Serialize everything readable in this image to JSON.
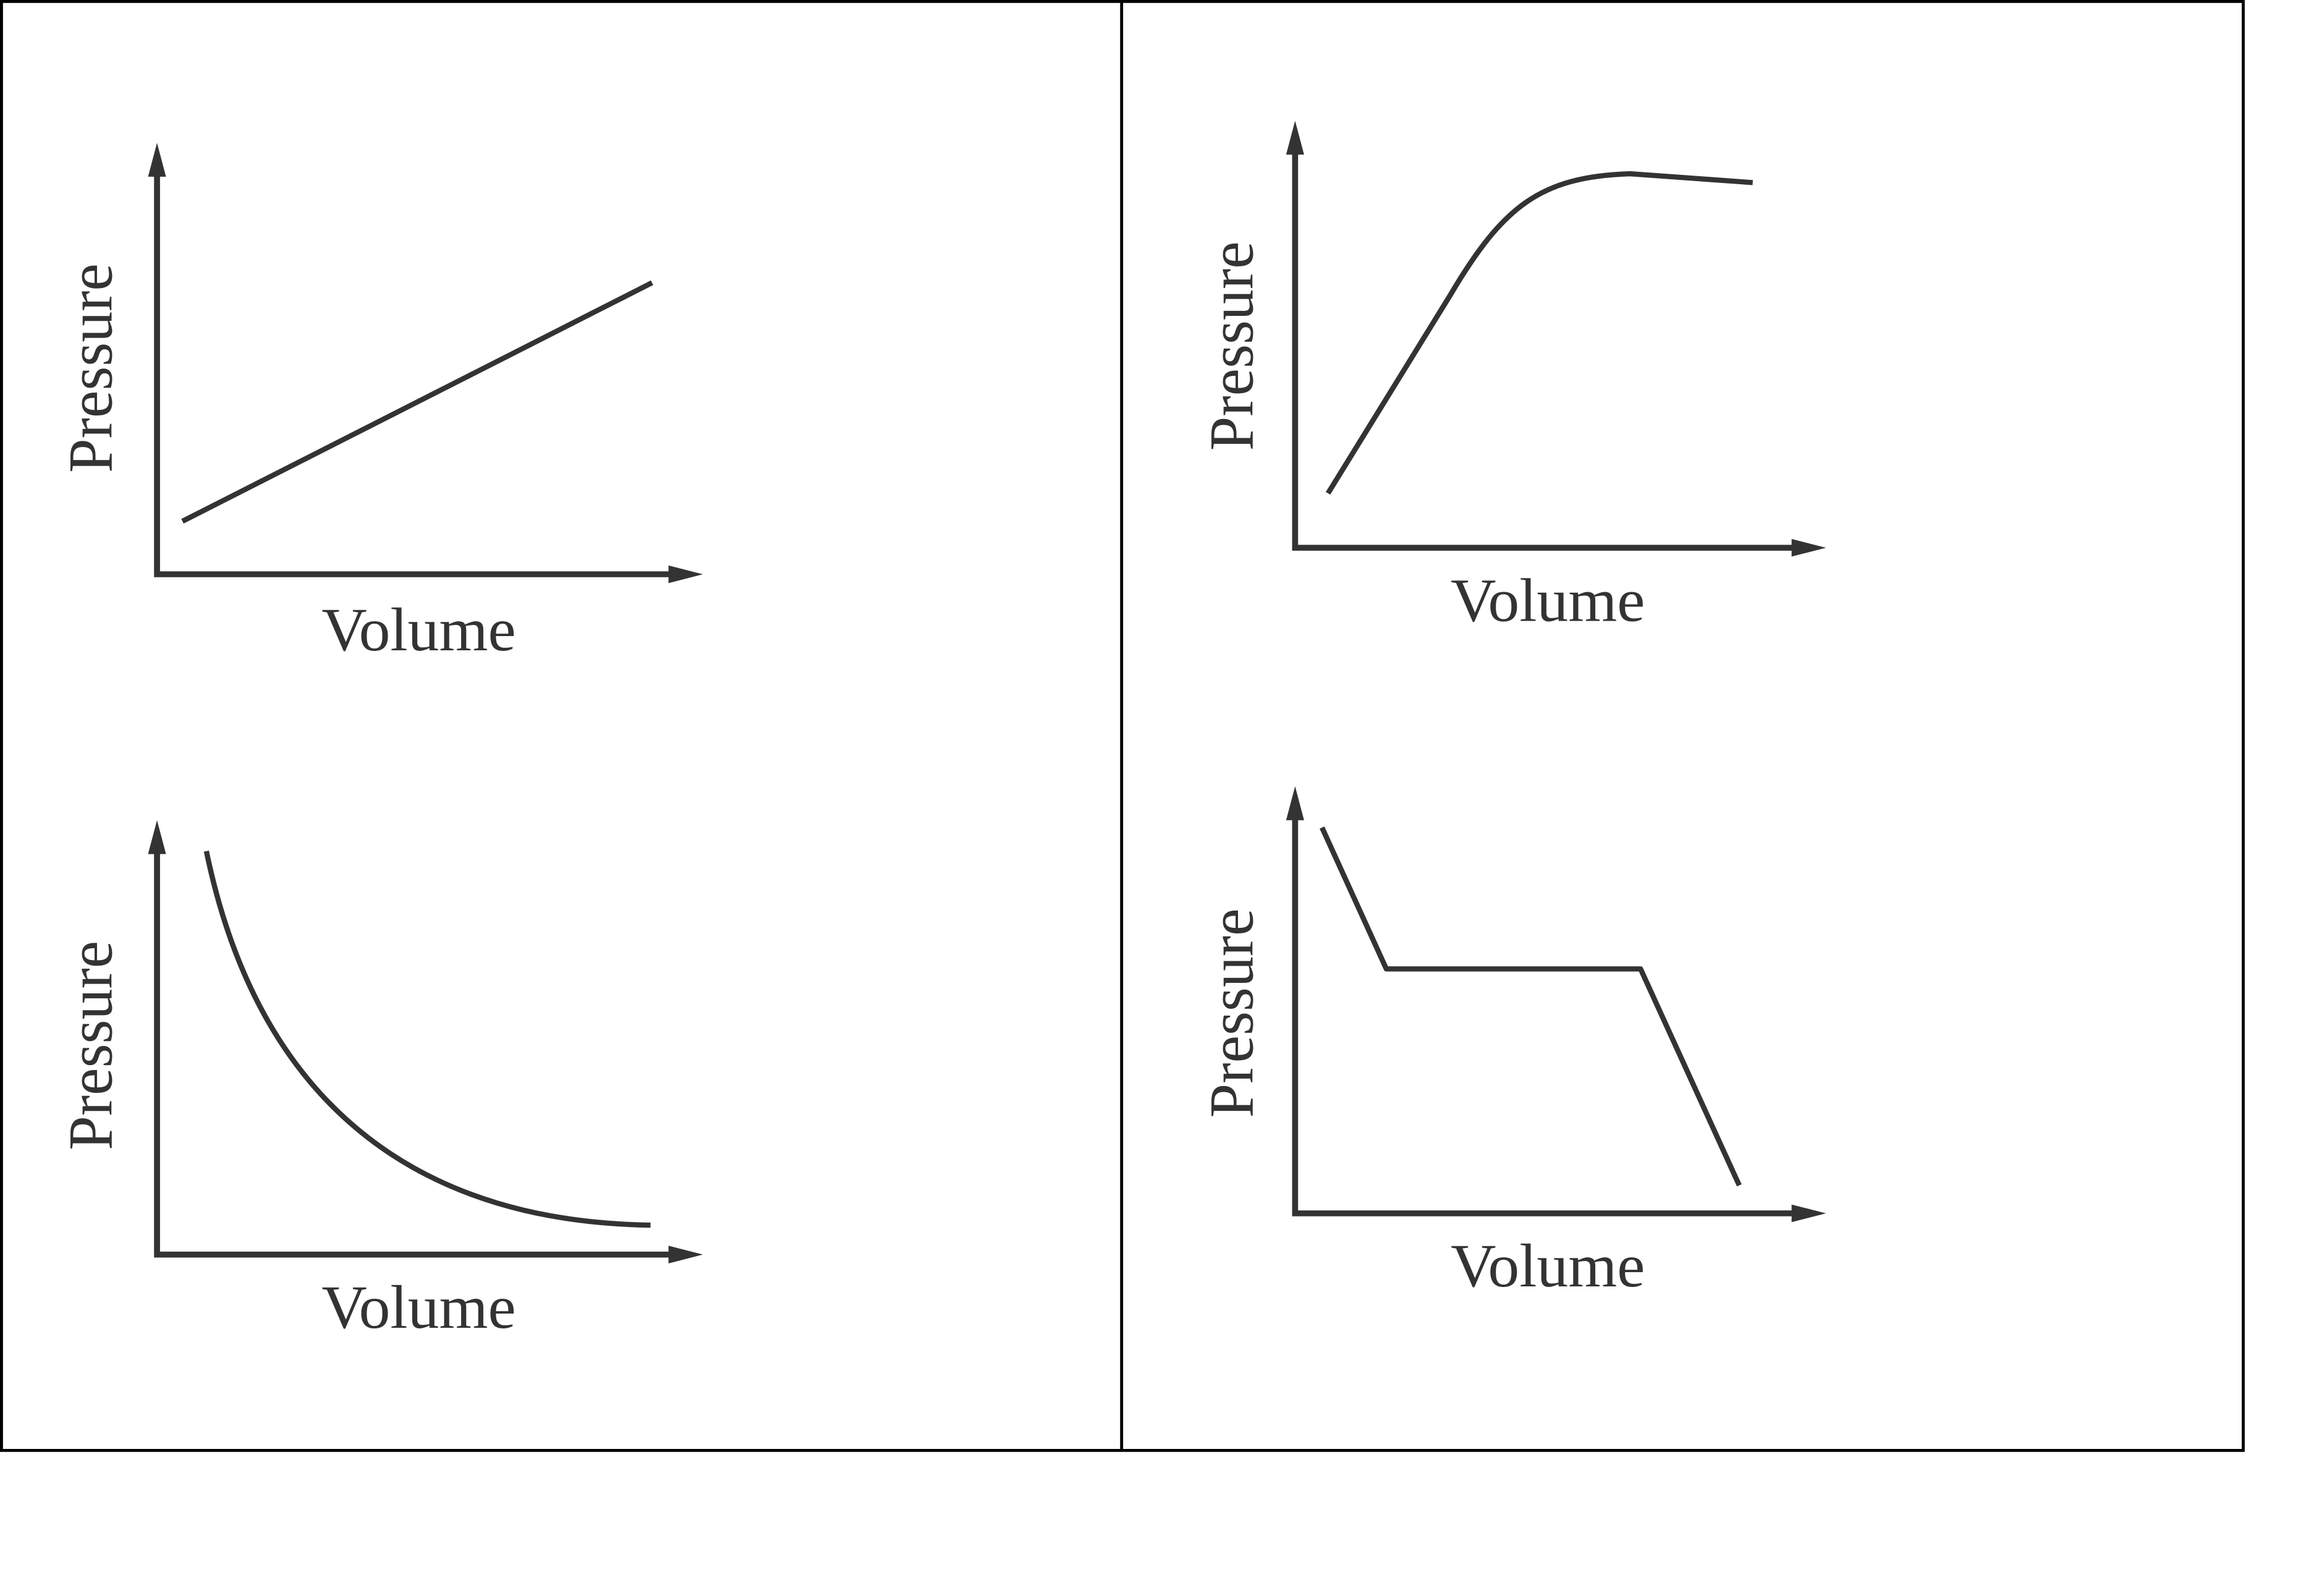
{
  "panels": [
    {
      "y_label": "Pressure",
      "x_label": "Volume"
    },
    {
      "y_label": "Pressure",
      "x_label": "Volume"
    },
    {
      "y_label": "Pressure",
      "x_label": "Volume"
    },
    {
      "y_label": "Pressure",
      "x_label": "Volume"
    }
  ]
}
